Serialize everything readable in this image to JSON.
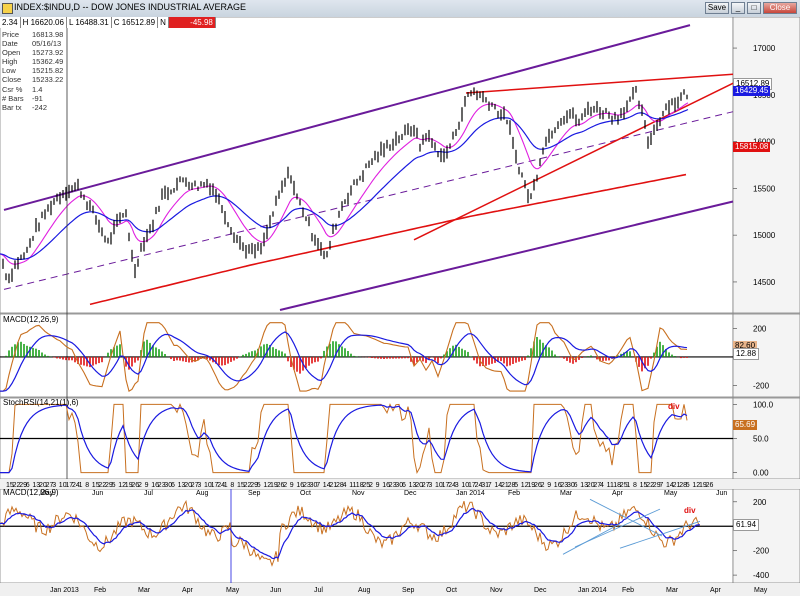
{
  "window": {
    "title": "INDEX:$INDU,D -- DOW JONES INDUSTRIAL AVERAGE",
    "buttons": [
      "Save",
      "Close"
    ]
  },
  "infobar": {
    "last": "2.34",
    "high": "H 16620.06",
    "low": "L 16488.31",
    "close": "C 16512.89",
    "change_label": "N",
    "change": "-45.98"
  },
  "databox": [
    {
      "label": "Price",
      "value": "16813.98"
    },
    {
      "label": "Date",
      "value": "05/16/13"
    },
    {
      "label": "Open",
      "value": "15273.92"
    },
    {
      "label": "High",
      "value": "15362.49"
    },
    {
      "label": "Low",
      "value": "15215.82"
    },
    {
      "label": "Close",
      "value": "15233.22"
    },
    {
      "label": "Csr %",
      "value": "1.4"
    },
    {
      "label": "# Bars",
      "value": "-91"
    },
    {
      "label": "Bar tx",
      "value": "-242"
    }
  ],
  "colors": {
    "price": "#000000",
    "ema_fast": "#e020e0",
    "ema_slow": "#1a1ae0",
    "ma_long": "#e01010",
    "channel": "#6a1b9a",
    "macd": "#c87020",
    "signal": "#1a1ae0",
    "hist_pos": "#1aa01a",
    "hist_neg": "#e01010"
  },
  "chart_data": [
    {
      "type": "candlestick",
      "title": "INDEX:$INDU,D -- DOW JONES INDUSTRIAL AVERAGE",
      "ylim": [
        14200,
        17300
      ],
      "yticks": [
        14500,
        15000,
        15500,
        16000,
        16500,
        17000
      ],
      "series": [
        {
          "name": "Price (daily bars)",
          "points": [
            [
              0,
              14800
            ],
            [
              8,
              14520
            ],
            [
              16,
              14700
            ],
            [
              26,
              14800
            ],
            [
              35,
              15050
            ],
            [
              45,
              15230
            ],
            [
              55,
              15380
            ],
            [
              66,
              15480
            ],
            [
              78,
              15520
            ],
            [
              90,
              15300
            ],
            [
              100,
              15080
            ],
            [
              108,
              14920
            ],
            [
              117,
              15120
            ],
            [
              126,
              15250
            ],
            [
              134,
              14600
            ],
            [
              142,
              14900
            ],
            [
              152,
              15100
            ],
            [
              162,
              15420
            ],
            [
              172,
              15500
            ],
            [
              184,
              15600
            ],
            [
              196,
              15520
            ],
            [
              208,
              15560
            ],
            [
              214,
              15480
            ],
            [
              222,
              15300
            ],
            [
              232,
              15050
            ],
            [
              242,
              14880
            ],
            [
              252,
              14820
            ],
            [
              262,
              14860
            ],
            [
              272,
              15200
            ],
            [
              280,
              15450
            ],
            [
              290,
              15680
            ],
            [
              296,
              15420
            ],
            [
              304,
              15250
            ],
            [
              312,
              15020
            ],
            [
              320,
              14900
            ],
            [
              326,
              14720
            ],
            [
              332,
              15000
            ],
            [
              342,
              15320
            ],
            [
              352,
              15500
            ],
            [
              362,
              15650
            ],
            [
              372,
              15800
            ],
            [
              382,
              15900
            ],
            [
              394,
              16010
            ],
            [
              404,
              16080
            ],
            [
              414,
              16150
            ],
            [
              420,
              15950
            ],
            [
              426,
              16080
            ],
            [
              434,
              15950
            ],
            [
              444,
              15830
            ],
            [
              452,
              16000
            ],
            [
              460,
              16240
            ],
            [
              468,
              16500
            ],
            [
              474,
              16540
            ],
            [
              482,
              16480
            ],
            [
              492,
              16400
            ],
            [
              500,
              16300
            ],
            [
              508,
              16230
            ],
            [
              514,
              15900
            ],
            [
              520,
              15700
            ],
            [
              526,
              15500
            ],
            [
              530,
              15370
            ],
            [
              536,
              15600
            ],
            [
              542,
              15920
            ],
            [
              550,
              16080
            ],
            [
              560,
              16240
            ],
            [
              570,
              16300
            ],
            [
              580,
              16200
            ],
            [
              588,
              16360
            ],
            [
              596,
              16350
            ],
            [
              606,
              16310
            ],
            [
              616,
              16250
            ],
            [
              626,
              16370
            ],
            [
              636,
              16520
            ],
            [
              642,
              16300
            ],
            [
              648,
              16000
            ],
            [
              654,
              16120
            ],
            [
              660,
              16250
            ],
            [
              668,
              16410
            ],
            [
              676,
              16420
            ],
            [
              684,
              16500
            ],
            [
              688,
              16513
            ]
          ]
        },
        {
          "name": "EMA fast"
        },
        {
          "name": "EMA slow"
        },
        {
          "name": "Moving average"
        }
      ],
      "price_labels": [
        {
          "value": "16512.89",
          "bg": "#ffffff"
        },
        {
          "value": "16429.45",
          "bg": "#1a1ae0"
        },
        {
          "value": "15815.08",
          "bg": "#e01010"
        }
      ]
    },
    {
      "type": "line",
      "title": "MACD(12,26,9)",
      "ylim": [
        -260,
        280
      ],
      "yticks": [
        200,
        -200
      ],
      "tick_labels": [
        "200",
        "-200"
      ],
      "series": [
        {
          "name": "MACD"
        },
        {
          "name": "Signal"
        },
        {
          "name": "Histogram"
        }
      ],
      "value_labels": [
        {
          "value": "82.60",
          "bg": "#e8b48a"
        },
        {
          "value": "12.88",
          "bg": "#ffffff"
        }
      ]
    },
    {
      "type": "line",
      "title": "StochRSI(14,21(1),6)",
      "ylim": [
        -5,
        105
      ],
      "yticks": [
        100,
        50,
        0
      ],
      "tick_labels": [
        "100.0",
        "50.0",
        "0.00"
      ],
      "annotation": "div",
      "value_labels": [
        {
          "value": "65.69",
          "bg": "#c87020"
        }
      ],
      "x_tick_labels": [
        "15",
        "22",
        "29",
        "6",
        "13",
        "20",
        "27",
        "3",
        "10",
        "17",
        "24",
        "1",
        "8",
        "15",
        "22",
        "29",
        "5",
        "12",
        "19",
        "26",
        "2",
        "9",
        "16",
        "23",
        "30",
        "6",
        "13",
        "20",
        "27",
        "3",
        "10",
        "17",
        "24",
        "1",
        "8",
        "15",
        "22",
        "29",
        "5",
        "12",
        "19",
        "26",
        "2",
        "9",
        "16",
        "23",
        "30",
        "7",
        "14",
        "21",
        "28",
        "4",
        "11",
        "18",
        "25",
        "2",
        "9",
        "16",
        "23",
        "30",
        "6",
        "13",
        "20",
        "27",
        "3",
        "10",
        "17",
        "24",
        "3",
        "10",
        "17",
        "24",
        "31",
        "7",
        "14",
        "21",
        "28",
        "5",
        "12",
        "19",
        "26",
        "2",
        "9",
        "16",
        "23",
        "30",
        "6",
        "13",
        "20",
        "27",
        "4",
        "11",
        "18",
        "25",
        "1",
        "8",
        "15",
        "22",
        "29",
        "7",
        "14",
        "21",
        "28",
        "5",
        "12",
        "19",
        "26"
      ],
      "x_month_labels": [
        "May",
        "Jun",
        "Jul",
        "Aug",
        "Sep",
        "Oct",
        "Nov",
        "Dec",
        "Jan 2014",
        "Feb",
        "Mar",
        "Apr",
        "May",
        "Jun"
      ]
    },
    {
      "type": "line",
      "title": "MACD(12,26,9)",
      "ylim": [
        -440,
        280
      ],
      "yticks": [
        200,
        0,
        -200,
        -400
      ],
      "tick_labels": [
        "200",
        "0",
        "-200",
        "-400"
      ],
      "annotation": "div",
      "value_labels": [
        {
          "value": "61.94",
          "bg": "#ffffff"
        }
      ],
      "x_month_labels": [
        "Jan 2013",
        "Feb",
        "Mar",
        "Apr",
        "May",
        "Jun",
        "Jul",
        "Aug",
        "Sep",
        "Oct",
        "Nov",
        "Dec",
        "Jan 2014",
        "Feb",
        "Mar",
        "Apr",
        "May"
      ]
    }
  ]
}
